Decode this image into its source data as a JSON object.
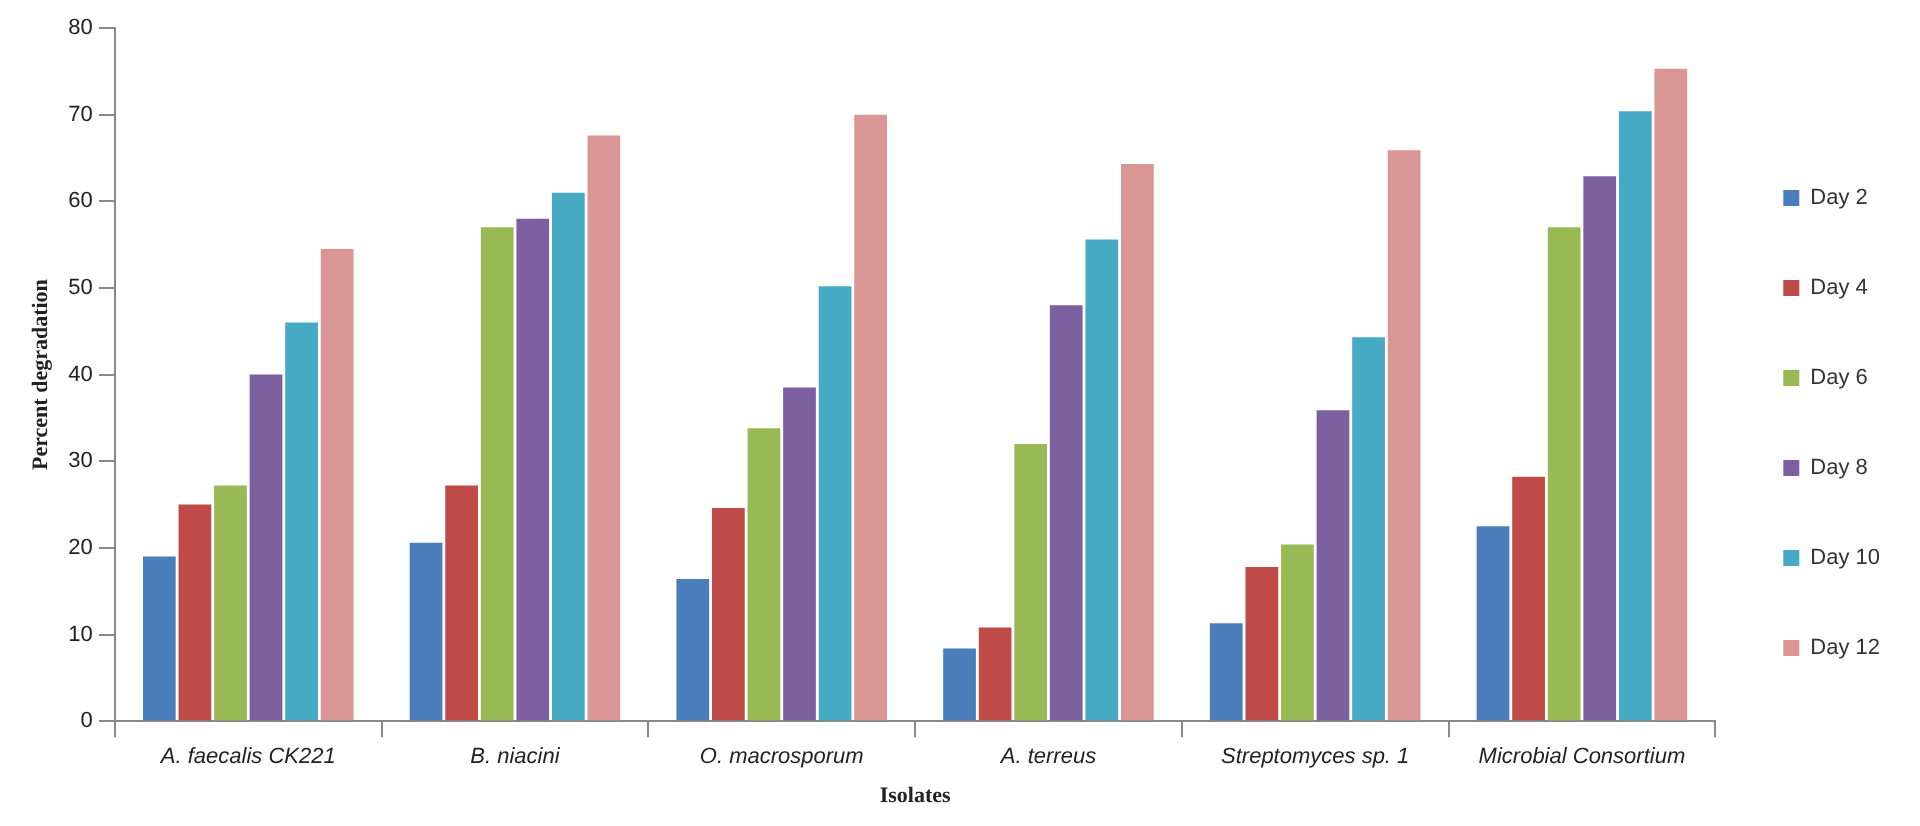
{
  "chart_data": {
    "type": "bar",
    "xlabel": "Isolates",
    "ylabel": "Percent degradation",
    "categories": [
      "A. faecalis CK221",
      "B. niacini",
      "O. macrosporum",
      "A. terreus",
      "Streptomyces sp. 1",
      "Microbial Consortium"
    ],
    "series": [
      {
        "name": "Day 2",
        "color": "#4a7ebb",
        "values": [
          19,
          20.6,
          16.4,
          8.4,
          11.3,
          22.5
        ]
      },
      {
        "name": "Day 4",
        "color": "#be4b48",
        "values": [
          25,
          27.2,
          24.6,
          10.8,
          17.8,
          28.2
        ]
      },
      {
        "name": "Day 6",
        "color": "#98b954",
        "values": [
          27.2,
          57,
          33.8,
          32,
          20.4,
          57
        ]
      },
      {
        "name": "Day 8",
        "color": "#7d60a0",
        "values": [
          40,
          58,
          38.5,
          48,
          35.9,
          62.9
        ]
      },
      {
        "name": "Day 10",
        "color": "#46aac5",
        "values": [
          46,
          61,
          50.2,
          55.6,
          44.3,
          70.4
        ]
      },
      {
        "name": "Day 12",
        "color": "#d99694",
        "values": [
          54.5,
          67.6,
          70,
          64.3,
          65.9,
          75.3
        ]
      }
    ],
    "ylim": [
      0,
      80
    ],
    "yticks": [
      0,
      10,
      20,
      30,
      40,
      50,
      60,
      70,
      80
    ],
    "grid": false,
    "legend": "right"
  }
}
